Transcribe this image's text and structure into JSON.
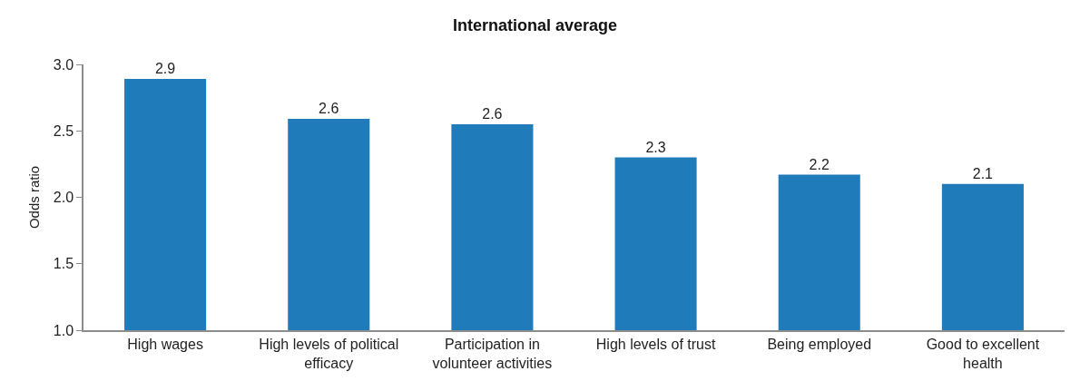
{
  "chart_data": {
    "type": "bar",
    "title": "International average",
    "ylabel": "Odds ratio",
    "categories": [
      "High wages",
      "High levels of political efficacy",
      "Participation in volunteer activities",
      "High levels of trust",
      "Being employed",
      "Good to excellent health"
    ],
    "values": [
      2.89,
      2.59,
      2.55,
      2.3,
      2.17,
      2.1
    ],
    "value_labels": [
      "2.9",
      "2.6",
      "2.6",
      "2.3",
      "2.2",
      "2.1"
    ],
    "color": "#207bbb",
    "ylim": [
      1.0,
      3.0
    ],
    "yticks": [
      {
        "value": 1.0,
        "label": "1.0"
      },
      1.5,
      {
        "value": 2.0,
        "label": "2.0"
      },
      2.5,
      {
        "value": 3.0,
        "label": "3.0"
      }
    ]
  }
}
